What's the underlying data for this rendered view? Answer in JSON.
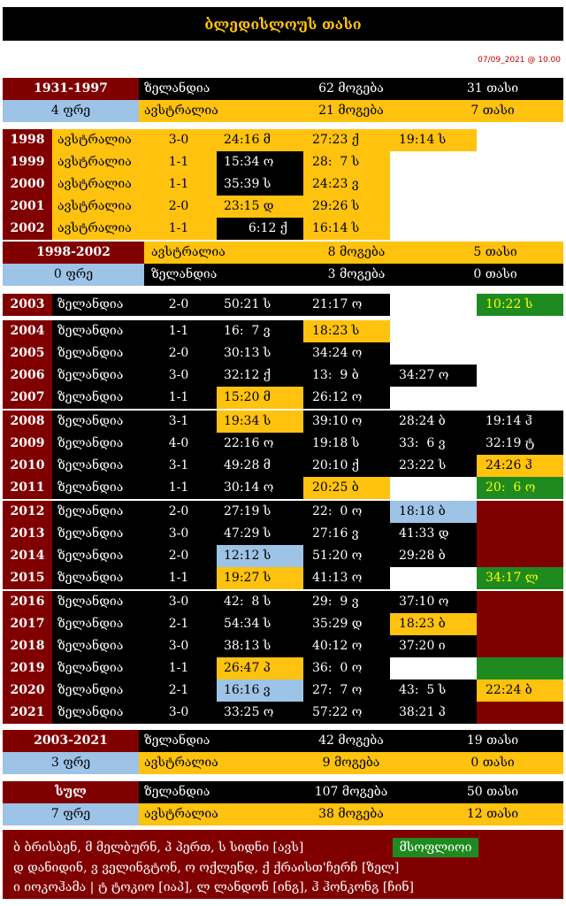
{
  "title": "ბლედისლოუს თასი",
  "timestamp": "07/09_2021 @ 10.00",
  "summary_1931": {
    "period": "1931-1997",
    "draws": "4 ფრე",
    "rows": [
      {
        "team": "ზელანდია",
        "wins": "62 მოგება",
        "cups": "31 თასი"
      },
      {
        "team": "ავსტრალია",
        "wins": "21 მოგება",
        "cups": "7 თასი"
      }
    ]
  },
  "block_a": [
    {
      "year": "1998",
      "team": "ავსტრალია",
      "score": "3-0",
      "m1": "24:16 მ",
      "m2": "27:23 ქ",
      "m3": "19:14 ს",
      "m4": ""
    },
    {
      "year": "1999",
      "team": "ავსტრალია",
      "score": "1-1",
      "m1": "15:34 ო",
      "m2": "28:  7 ს",
      "m3": "",
      "m4": ""
    },
    {
      "year": "2000",
      "team": "ავსტრალია",
      "score": "1-1",
      "m1": "35:39 ს",
      "m2": "24:23 ვ",
      "m3": "",
      "m4": ""
    },
    {
      "year": "2001",
      "team": "ავსტრალია",
      "score": "2-0",
      "m1": "23:15 დ",
      "m2": "29:26 ს",
      "m3": "",
      "m4": ""
    },
    {
      "year": "2002",
      "team": "ავსტრალია",
      "score": "1-1",
      "m1": "6:12 ქ",
      "m2": "16:14 ს",
      "m3": "",
      "m4": ""
    }
  ],
  "summary_1998": {
    "period": "1998-2002",
    "draws": "0 ფრე",
    "rows": [
      {
        "team": "ავსტრალია",
        "wins": "8 მოგება",
        "cups": "5 თასი"
      },
      {
        "team": "ზელანდია",
        "wins": "3 მოგება",
        "cups": "0 თასი"
      }
    ]
  },
  "block_b": [
    {
      "year": "2003",
      "team": "ზელანდია",
      "score": "2-0",
      "m1": "50:21 ს",
      "m2": "21:17 ო",
      "m3": "",
      "m4": "10:22 ს"
    }
  ],
  "block_c": [
    {
      "year": "2004",
      "team": "ზელანდია",
      "score": "1-1",
      "m1": "16:  7 ვ",
      "m2": "18:23 ს",
      "m3": "",
      "m4": ""
    },
    {
      "year": "2005",
      "team": "ზელანდია",
      "score": "2-0",
      "m1": "30:13 ს",
      "m2": "34:24 ო",
      "m3": "",
      "m4": ""
    },
    {
      "year": "2006",
      "team": "ზელანდია",
      "score": "3-0",
      "m1": "32:12 ქ",
      "m2": "13:  9 ბ",
      "m3": "34:27 ო",
      "m4": ""
    },
    {
      "year": "2007",
      "team": "ზელანდია",
      "score": "1-1",
      "m1": "15:20 მ",
      "m2": "26:12 ო",
      "m3": "",
      "m4": ""
    }
  ],
  "block_d": [
    {
      "year": "2008",
      "team": "ზელანდია",
      "score": "3-1",
      "m1": "19:34 ს",
      "m2": "39:10 ო",
      "m3": "28:24 ბ",
      "m4": "19:14 ჰ"
    },
    {
      "year": "2009",
      "team": "ზელანდია",
      "score": "4-0",
      "m1": "22:16 ო",
      "m2": "19:18 ს",
      "m3": "33:  6 ვ",
      "m4": "32:19 ტ"
    },
    {
      "year": "2010",
      "team": "ზელანდია",
      "score": "3-1",
      "m1": "49:28 მ",
      "m2": "20:10 ქ",
      "m3": "23:22 ს",
      "m4": "24:26 ჰ"
    },
    {
      "year": "2011",
      "team": "ზელანდია",
      "score": "1-1",
      "m1": "30:14 ო",
      "m2": "20:25 ბ",
      "m3": "",
      "m4": "20:  6 ო"
    }
  ],
  "block_e": [
    {
      "year": "2012",
      "team": "ზელანდია",
      "score": "2-0",
      "m1": "27:19 ს",
      "m2": "22:  0 ო",
      "m3": "18:18 ბ",
      "m4": ""
    },
    {
      "year": "2013",
      "team": "ზელანდია",
      "score": "3-0",
      "m1": "47:29 ს",
      "m2": "27:16 ვ",
      "m3": "41:33 დ",
      "m4": ""
    },
    {
      "year": "2014",
      "team": "ზელანდია",
      "score": "2-0",
      "m1": "12:12 ს",
      "m2": "51:20 ო",
      "m3": "29:28 ბ",
      "m4": ""
    },
    {
      "year": "2015",
      "team": "ზელანდია",
      "score": "1-1",
      "m1": "19:27 ს",
      "m2": "41:13 ო",
      "m3": "",
      "m4": "34:17 ლ"
    }
  ],
  "block_f": [
    {
      "year": "2016",
      "team": "ზელანდია",
      "score": "3-0",
      "m1": "42:  8 ს",
      "m2": "29:  9 ვ",
      "m3": "37:10 ო",
      "m4": ""
    },
    {
      "year": "2017",
      "team": "ზელანდია",
      "score": "2-1",
      "m1": "54:34 ს",
      "m2": "35:29 დ",
      "m3": "18:23 ბ",
      "m4": ""
    },
    {
      "year": "2018",
      "team": "ზელანდია",
      "score": "3-0",
      "m1": "38:13 ს",
      "m2": "40:12 ო",
      "m3": "37:20 ი",
      "m4": ""
    },
    {
      "year": "2019",
      "team": "ზელანდია",
      "score": "1-1",
      "m1": "26:47 პ",
      "m2": "36:  0 ო",
      "m3": "",
      "m4": ""
    }
  ],
  "block_g": [
    {
      "year": "2020",
      "team": "ზელანდია",
      "score": "2-1",
      "m1": "16:16 ვ",
      "m2": "27:  7 ო",
      "m3": "43:  5 ს",
      "m4": "22:24 ბ"
    },
    {
      "year": "2021",
      "team": "ზელანდია",
      "score": "3-0",
      "m1": "33:25 ო",
      "m2": "57:22 ო",
      "m3": "38:21 პ",
      "m4": ""
    }
  ],
  "summary_2003": {
    "period": "2003-2021",
    "draws": "3 ფრე",
    "rows": [
      {
        "team": "ზელანდია",
        "wins": "42 მოგება",
        "cups": "19 თასი"
      },
      {
        "team": "ავსტრალია",
        "wins": "9 მოგება",
        "cups": "0 თასი"
      }
    ]
  },
  "summary_total": {
    "period": "სულ",
    "draws": "7 ფრე",
    "rows": [
      {
        "team": "ზელანდია",
        "wins": "107 მოგება",
        "cups": "50 თასი"
      },
      {
        "team": "ავსტრალია",
        "wins": "38 მოგება",
        "cups": "12 თასი"
      }
    ]
  },
  "footer": {
    "line1": "ბ ბრისბენ, მ მელბურნ, პ პერთ, ს სიდნი [ავს]",
    "line2": "დ დანიდინ, ვ ველინგტონ, ო ოქლენდ, ქ ქრაისთ'ჩერჩ [ზელ]",
    "line3": "ი იოკოჰამა | ტ ტოკიო [იაპ], ლ ლანდონ [ინგ], ჰ ჰონკონგ [ჩინ]",
    "champion": "მსოფლიოი"
  },
  "colors": {
    "maroon": "#800000",
    "gold": "#ffc20e",
    "blue": "#9dc3e6",
    "green": "#1f8a1f",
    "black": "#000000"
  }
}
